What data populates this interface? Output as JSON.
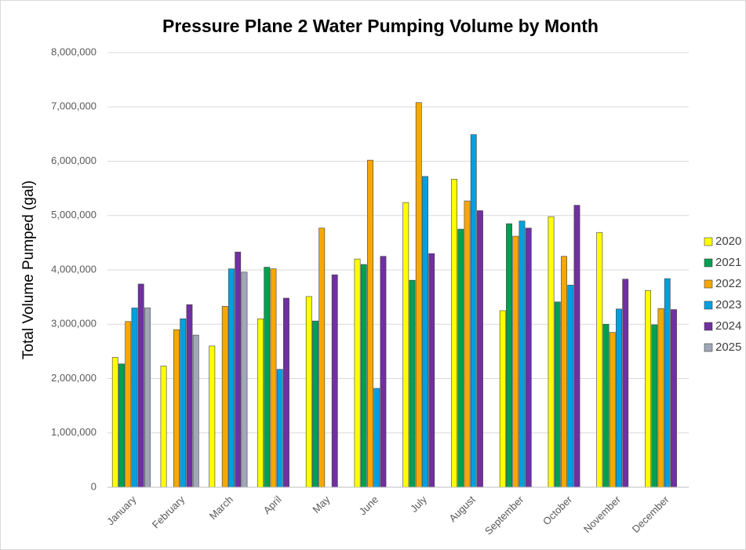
{
  "chart_data": {
    "type": "bar",
    "title": "Pressure Plane 2 Water Pumping Volume by Month",
    "y_label": "Total Volume Pumped (gal)",
    "categories": [
      "January",
      "February",
      "March",
      "April",
      "May",
      "June",
      "July",
      "August",
      "September",
      "October",
      "November",
      "December"
    ],
    "series": [
      {
        "name": "2020",
        "color": "#ffff00",
        "values": [
          2390000,
          2230000,
          2600000,
          3100000,
          3510000,
          4200000,
          5240000,
          5670000,
          3250000,
          4980000,
          4690000,
          3620000
        ]
      },
      {
        "name": "2021",
        "color": "#00a050",
        "values": [
          2270000,
          null,
          null,
          4050000,
          3060000,
          4100000,
          3810000,
          4750000,
          4850000,
          3410000,
          3000000,
          2990000
        ]
      },
      {
        "name": "2022",
        "color": "#f5a800",
        "values": [
          3050000,
          2900000,
          3330000,
          4020000,
          4770000,
          6020000,
          7080000,
          5270000,
          4620000,
          4250000,
          2850000,
          3290000
        ]
      },
      {
        "name": "2023",
        "color": "#00a0e0",
        "values": [
          3300000,
          3100000,
          4020000,
          2170000,
          null,
          1820000,
          5720000,
          6490000,
          4900000,
          3720000,
          3280000,
          3840000
        ]
      },
      {
        "name": "2024",
        "color": "#7030a0",
        "values": [
          3740000,
          3360000,
          4330000,
          3480000,
          3910000,
          4250000,
          4300000,
          5090000,
          4770000,
          5190000,
          3830000,
          3270000
        ]
      },
      {
        "name": "2025",
        "color": "#a0a8b8",
        "values": [
          3300000,
          2800000,
          3960000,
          null,
          null,
          null,
          null,
          null,
          null,
          null,
          null,
          null
        ]
      }
    ],
    "ylim": [
      0,
      8000000
    ],
    "yticks": [
      {
        "value": 0,
        "label": "0"
      },
      {
        "value": 1000000,
        "label": "1,000,000"
      },
      {
        "value": 2000000,
        "label": "2,000,000"
      },
      {
        "value": 3000000,
        "label": "3,000,000"
      },
      {
        "value": 4000000,
        "label": "4,000,000"
      },
      {
        "value": 5000000,
        "label": "5,000,000"
      },
      {
        "value": 6000000,
        "label": "6,000,000"
      },
      {
        "value": 7000000,
        "label": "7,000,000"
      },
      {
        "value": 8000000,
        "label": "8,000,000"
      }
    ],
    "grid": true,
    "legend": "right"
  }
}
